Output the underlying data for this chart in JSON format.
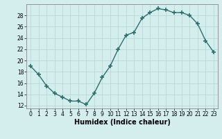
{
  "x": [
    0,
    1,
    2,
    3,
    4,
    5,
    6,
    7,
    8,
    9,
    10,
    11,
    12,
    13,
    14,
    15,
    16,
    17,
    18,
    19,
    20,
    21,
    22,
    23
  ],
  "y": [
    19.0,
    17.5,
    15.5,
    14.2,
    13.5,
    12.8,
    12.8,
    12.2,
    14.2,
    17.0,
    19.0,
    22.0,
    24.5,
    25.0,
    27.5,
    28.5,
    29.2,
    29.0,
    28.5,
    28.5,
    28.0,
    26.5,
    23.5,
    21.5
  ],
  "line_color": "#2d6e6e",
  "marker": "+",
  "marker_size": 4,
  "bg_color": "#d4eeee",
  "grid_color": "#b8d8d8",
  "xlabel": "Humidex (Indice chaleur)",
  "xlim": [
    -0.5,
    23.5
  ],
  "ylim": [
    11.5,
    30
  ],
  "yticks": [
    12,
    14,
    16,
    18,
    20,
    22,
    24,
    26,
    28
  ],
  "xticks": [
    0,
    1,
    2,
    3,
    4,
    5,
    6,
    7,
    8,
    9,
    10,
    11,
    12,
    13,
    14,
    15,
    16,
    17,
    18,
    19,
    20,
    21,
    22,
    23
  ],
  "label_fontsize": 7,
  "tick_fontsize": 5.5,
  "line_width": 1.0
}
